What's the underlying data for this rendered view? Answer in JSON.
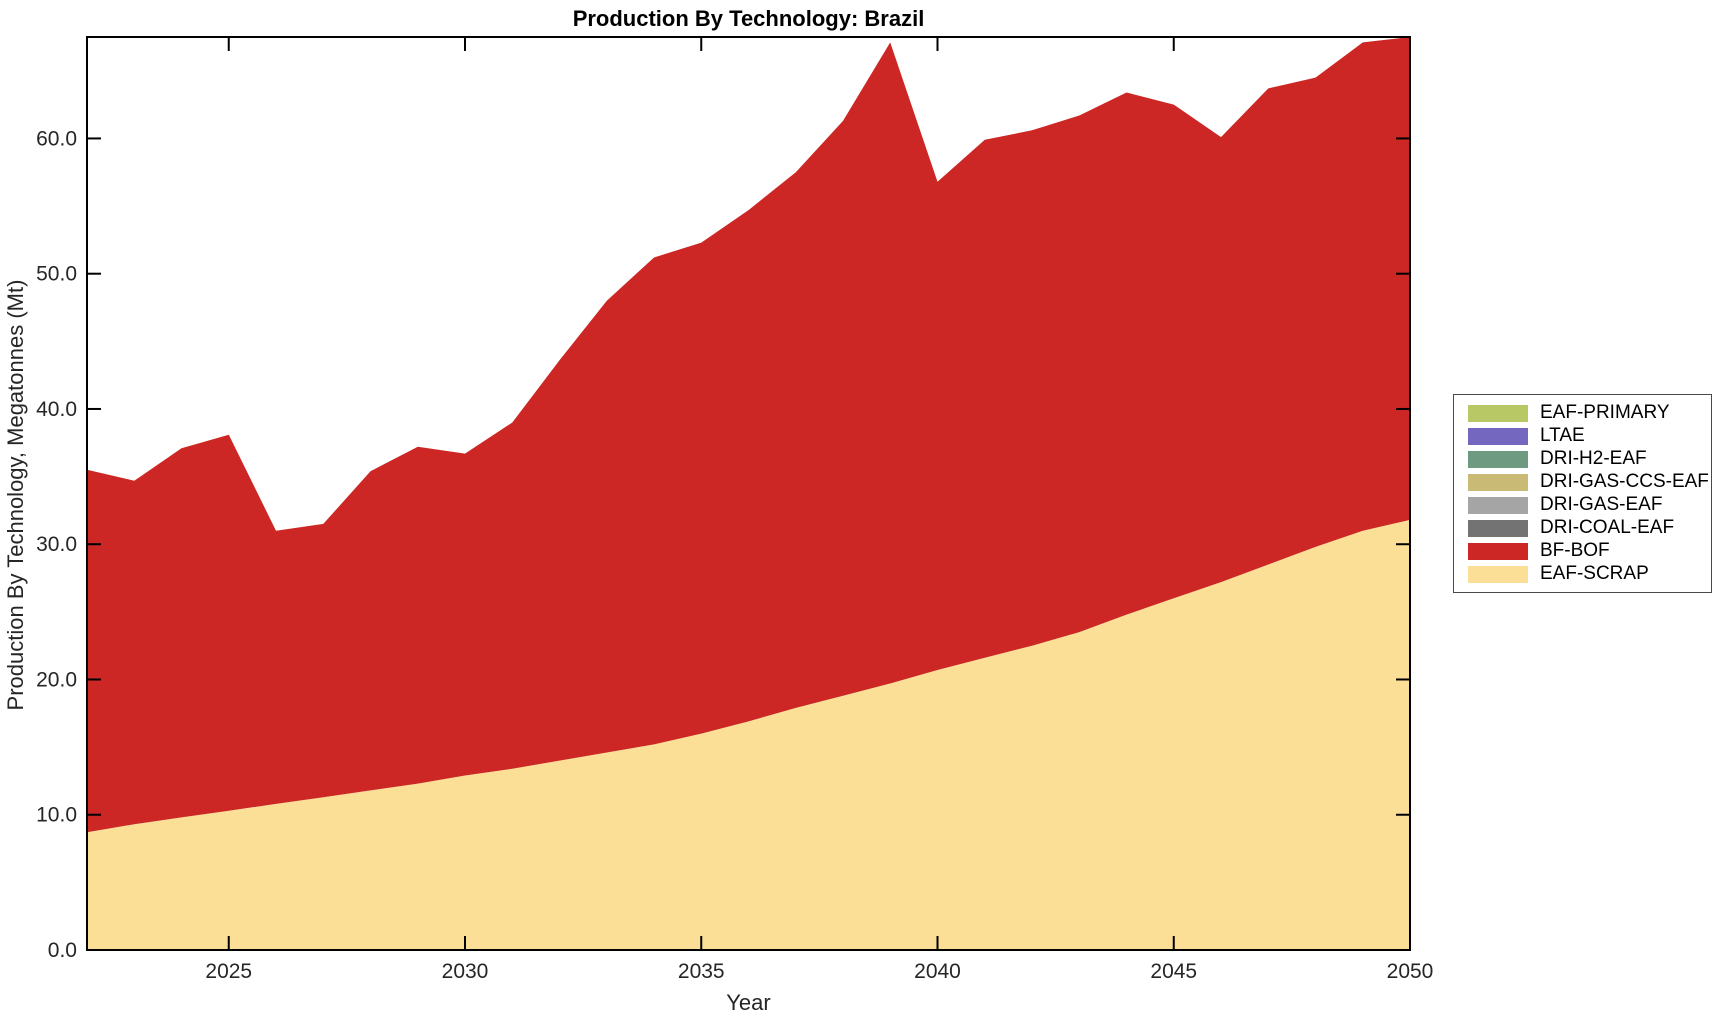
{
  "title": "Production By Technology: Brazil",
  "axes": {
    "xlabel": "Year",
    "ylabel": "Production By Technology, Megatonnes (Mt)",
    "x_ticks": [
      {
        "v": 2025,
        "label": "2025"
      },
      {
        "v": 2030,
        "label": "2030"
      },
      {
        "v": 2035,
        "label": "2035"
      },
      {
        "v": 2040,
        "label": "2040"
      },
      {
        "v": 2045,
        "label": "2045"
      },
      {
        "v": 2050,
        "label": "2050"
      }
    ],
    "y_ticks": [
      {
        "v": 0,
        "label": "0.0"
      },
      {
        "v": 10,
        "label": "10.0"
      },
      {
        "v": 20,
        "label": "20.0"
      },
      {
        "v": 30,
        "label": "30.0"
      },
      {
        "v": 40,
        "label": "40.0"
      },
      {
        "v": 50,
        "label": "50.0"
      },
      {
        "v": 60,
        "label": "60.0"
      }
    ]
  },
  "style": {
    "axis_color": "#000000",
    "tick_text_color": "#262626",
    "background": "#ffffff"
  },
  "chart_data": {
    "type": "area",
    "stacked": true,
    "title": "Production By Technology: Brazil",
    "xlabel": "Year",
    "ylabel": "Production By Technology, Megatonnes (Mt)",
    "xlim": [
      2022,
      2050
    ],
    "ylim": [
      0,
      67.5
    ],
    "grid": false,
    "legend_position": "right-outside",
    "x": [
      2022,
      2023,
      2024,
      2025,
      2026,
      2027,
      2028,
      2029,
      2030,
      2031,
      2032,
      2033,
      2034,
      2035,
      2036,
      2037,
      2038,
      2039,
      2040,
      2041,
      2042,
      2043,
      2044,
      2045,
      2046,
      2047,
      2048,
      2049,
      2050
    ],
    "series": [
      {
        "name": "EAF-SCRAP",
        "color": "#FBDF96",
        "values": [
          8.7,
          9.3,
          9.8,
          10.3,
          10.8,
          11.3,
          11.8,
          12.3,
          12.9,
          13.4,
          14.0,
          14.6,
          15.2,
          16.0,
          16.9,
          17.9,
          18.8,
          19.7,
          20.7,
          21.6,
          22.5,
          23.5,
          24.8,
          26.0,
          27.2,
          28.5,
          29.8,
          31.0,
          31.8
        ]
      },
      {
        "name": "BF-BOF",
        "color": "#CC2724",
        "values": [
          26.8,
          25.4,
          27.3,
          27.8,
          20.2,
          20.2,
          23.6,
          24.9,
          23.8,
          25.6,
          29.6,
          33.4,
          36.0,
          36.3,
          37.8,
          39.6,
          42.5,
          47.4,
          36.1,
          38.3,
          38.1,
          38.2,
          38.6,
          36.5,
          32.9,
          35.2,
          34.7,
          36.1,
          35.7
        ]
      },
      {
        "name": "DRI-COAL-EAF",
        "color": "#737373",
        "values": [
          0,
          0,
          0,
          0,
          0,
          0,
          0,
          0,
          0,
          0,
          0,
          0,
          0,
          0,
          0,
          0,
          0,
          0,
          0,
          0,
          0,
          0,
          0,
          0,
          0,
          0,
          0,
          0,
          0
        ]
      },
      {
        "name": "DRI-GAS-EAF",
        "color": "#A5A5A5",
        "values": [
          0,
          0,
          0,
          0,
          0,
          0,
          0,
          0,
          0,
          0,
          0,
          0,
          0,
          0,
          0,
          0,
          0,
          0,
          0,
          0,
          0,
          0,
          0,
          0,
          0,
          0,
          0,
          0,
          0
        ]
      },
      {
        "name": "DRI-GAS-CCS-EAF",
        "color": "#C9BB76",
        "values": [
          0,
          0,
          0,
          0,
          0,
          0,
          0,
          0,
          0,
          0,
          0,
          0,
          0,
          0,
          0,
          0,
          0,
          0,
          0,
          0,
          0,
          0,
          0,
          0,
          0,
          0,
          0,
          0,
          0
        ]
      },
      {
        "name": "DRI-H2-EAF",
        "color": "#6F9A82",
        "values": [
          0,
          0,
          0,
          0,
          0,
          0,
          0,
          0,
          0,
          0,
          0,
          0,
          0,
          0,
          0,
          0,
          0,
          0,
          0,
          0,
          0,
          0,
          0,
          0,
          0,
          0,
          0,
          0,
          0
        ]
      },
      {
        "name": "LTAE",
        "color": "#7467BF",
        "values": [
          0,
          0,
          0,
          0,
          0,
          0,
          0,
          0,
          0,
          0,
          0,
          0,
          0,
          0,
          0,
          0,
          0,
          0,
          0,
          0,
          0,
          0,
          0,
          0,
          0,
          0,
          0,
          0,
          0
        ]
      },
      {
        "name": "EAF-PRIMARY",
        "color": "#B8C865",
        "values": [
          0,
          0,
          0,
          0,
          0,
          0,
          0,
          0,
          0,
          0,
          0,
          0,
          0,
          0,
          0,
          0,
          0,
          0,
          0,
          0,
          0,
          0,
          0,
          0,
          0,
          0,
          0,
          0,
          0
        ]
      }
    ]
  }
}
